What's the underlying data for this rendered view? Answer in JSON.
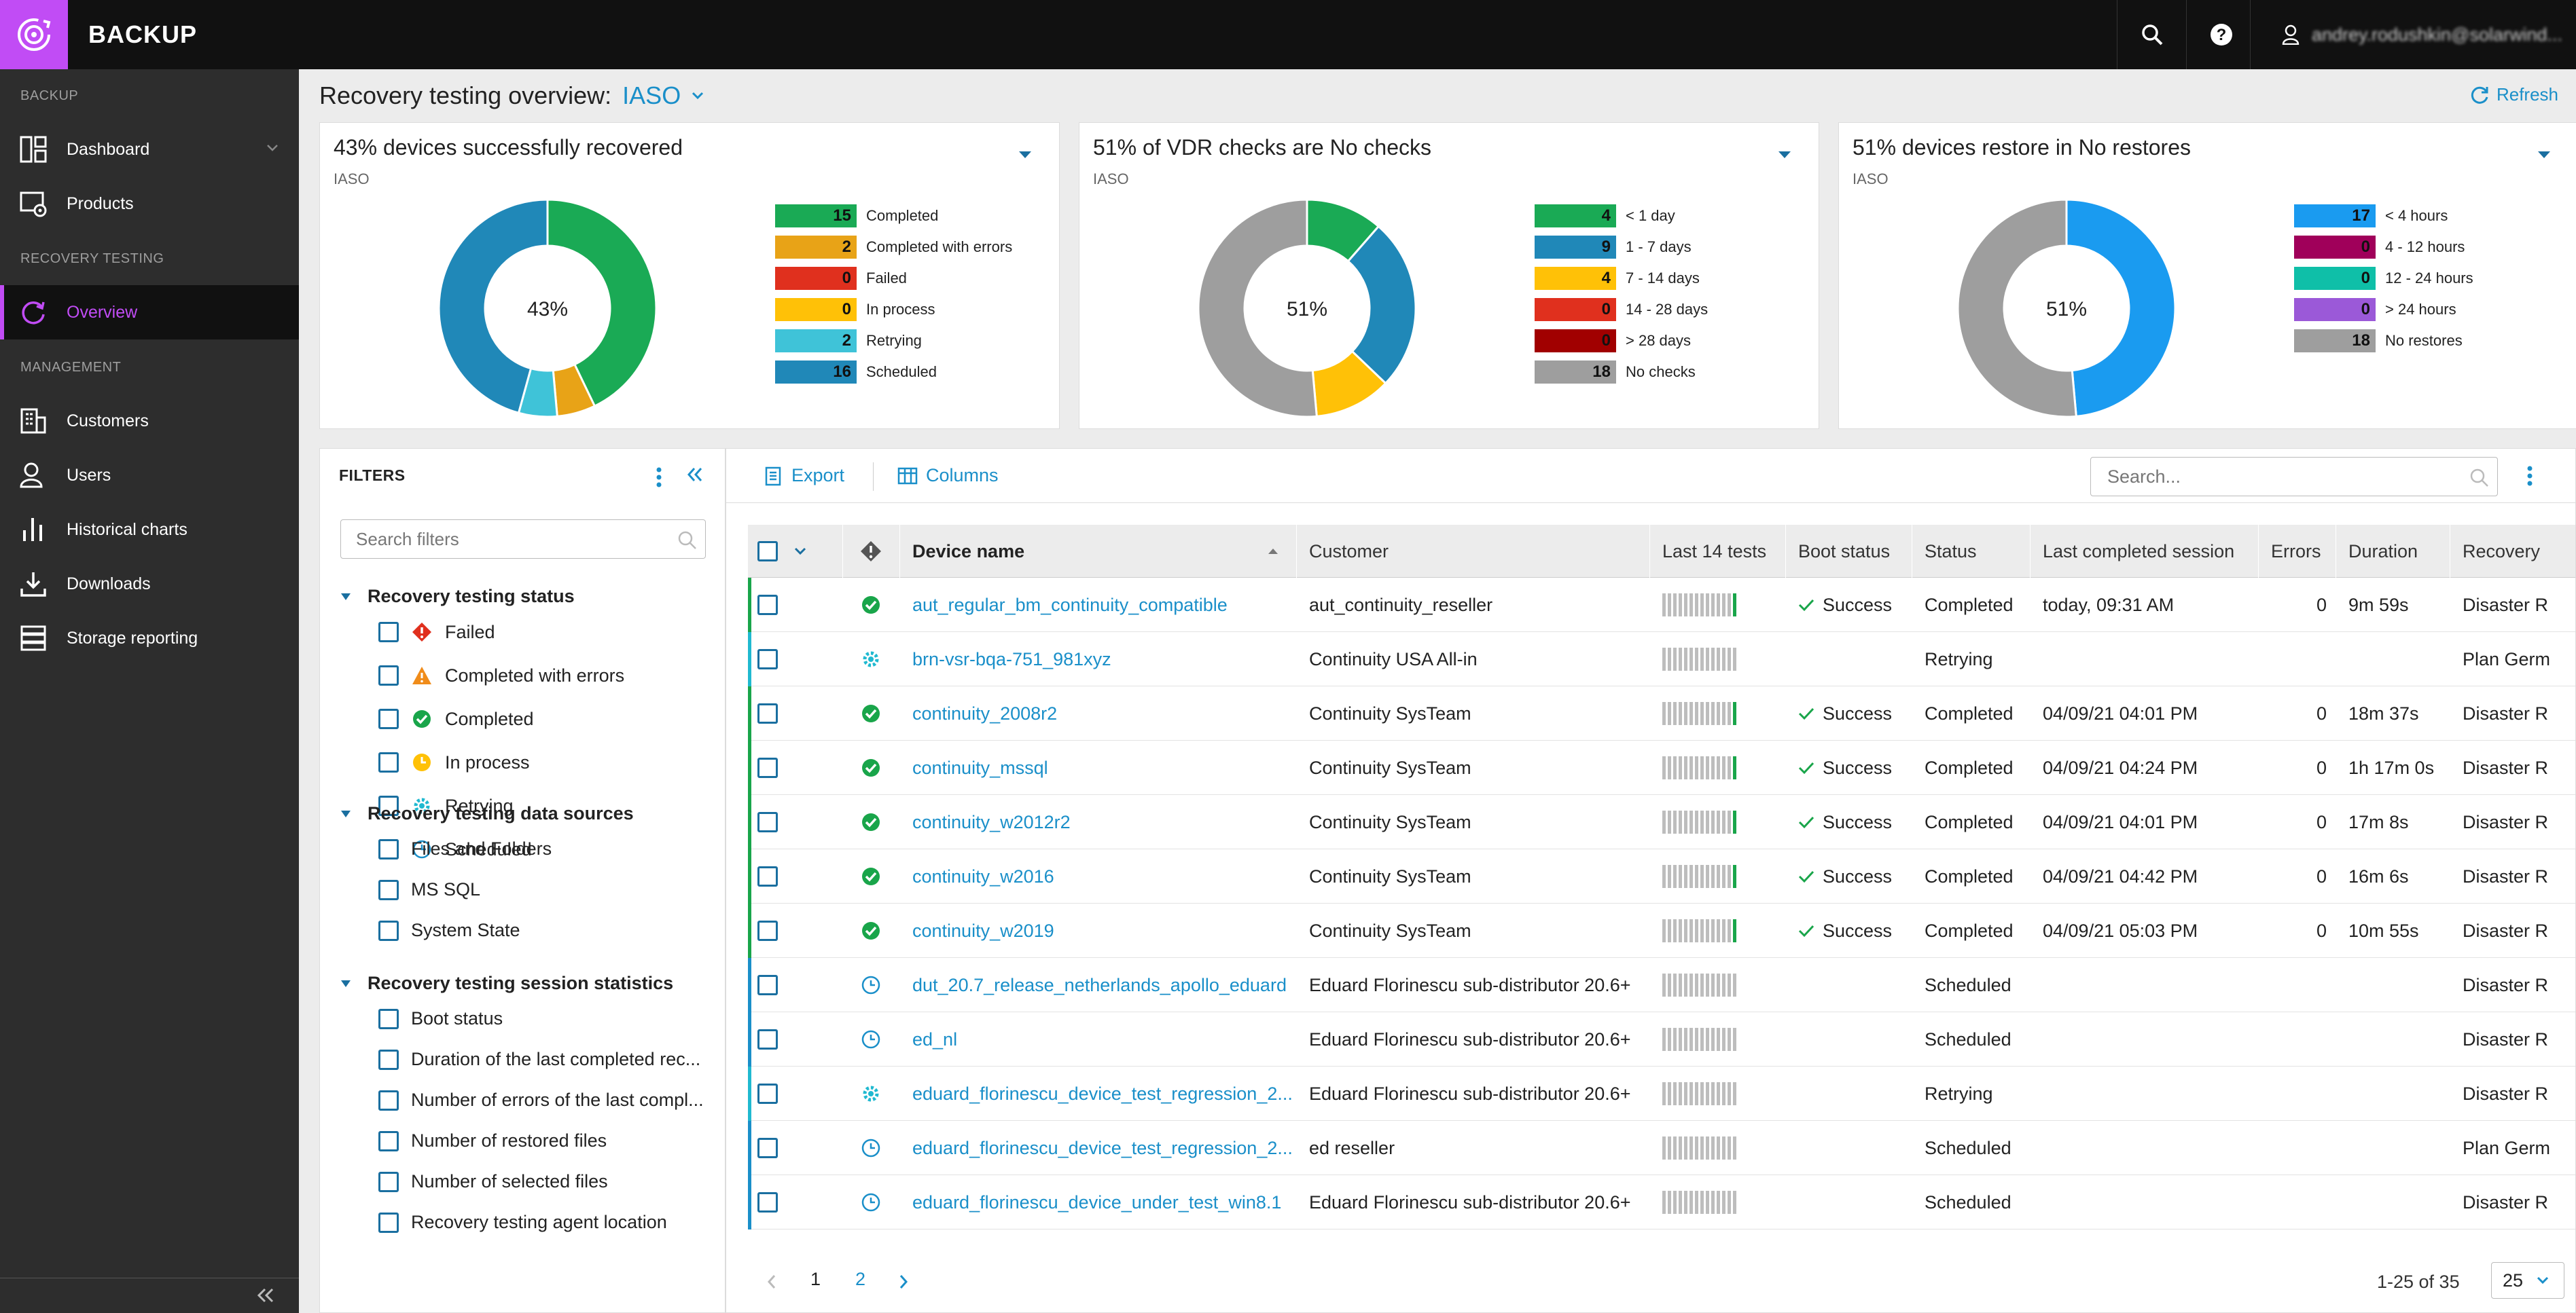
{
  "app": {
    "title": "BACKUP",
    "user": "andrey.rodushkin@solarwind..."
  },
  "sidebar": {
    "section_backup": "BACKUP",
    "section_recovery": "RECOVERY TESTING",
    "section_management": "MANAGEMENT",
    "items": {
      "dashboard": "Dashboard",
      "products": "Products",
      "overview": "Overview",
      "customers": "Customers",
      "users": "Users",
      "historical": "Historical charts",
      "downloads": "Downloads",
      "storage": "Storage reporting"
    }
  },
  "header": {
    "title": "Recovery testing overview:",
    "tenant": "IASO",
    "refresh": "Refresh"
  },
  "cards": [
    {
      "title": "43% devices successfully recovered",
      "sub": "IASO",
      "center": "43%",
      "legend": [
        {
          "value": 15,
          "label": "Completed",
          "color": "#1aaa55"
        },
        {
          "value": 2,
          "label": "Completed with errors",
          "color": "#e8a317"
        },
        {
          "value": 0,
          "label": "Failed",
          "color": "#e0301e"
        },
        {
          "value": 0,
          "label": "In process",
          "color": "#ffc107"
        },
        {
          "value": 2,
          "label": "Retrying",
          "color": "#3fc3d8"
        },
        {
          "value": 16,
          "label": "Scheduled",
          "color": "#2088b8"
        }
      ]
    },
    {
      "title": "51% of VDR checks are No checks",
      "sub": "IASO",
      "center": "51%",
      "legend": [
        {
          "value": 4,
          "label": "< 1 day",
          "color": "#1aaa55"
        },
        {
          "value": 9,
          "label": "1 - 7 days",
          "color": "#2088b8"
        },
        {
          "value": 4,
          "label": "7 - 14 days",
          "color": "#ffc107"
        },
        {
          "value": 0,
          "label": "14 - 28 days",
          "color": "#e0301e"
        },
        {
          "value": 0,
          "label": "> 28 days",
          "color": "#a10000"
        },
        {
          "value": 18,
          "label": "No checks",
          "color": "#9e9e9e"
        }
      ]
    },
    {
      "title": "51% devices restore in No restores",
      "sub": "IASO",
      "center": "51%",
      "legend": [
        {
          "value": 17,
          "label": "< 4 hours",
          "color": "#1a9bf0"
        },
        {
          "value": 0,
          "label": "4 - 12 hours",
          "color": "#a0005a"
        },
        {
          "value": 0,
          "label": "12 - 24 hours",
          "color": "#0fbfa8"
        },
        {
          "value": 0,
          "label": "> 24 hours",
          "color": "#9b59d8"
        },
        {
          "value": 18,
          "label": "No restores",
          "color": "#9e9e9e"
        }
      ]
    }
  ],
  "filters": {
    "title": "FILTERS",
    "search_placeholder": "Search filters",
    "groups": [
      {
        "title": "Recovery testing status",
        "items": [
          "Failed",
          "Completed with errors",
          "Completed",
          "In process",
          "Retrying",
          "Scheduled"
        ]
      },
      {
        "title": "Recovery testing data sources",
        "items": [
          "Files and Folders",
          "MS SQL",
          "System State"
        ]
      },
      {
        "title": "Recovery testing session statistics",
        "items": [
          "Boot status",
          "Duration of the last completed rec...",
          "Number of errors of the last compl...",
          "Number of restored files",
          "Number of selected files",
          "Recovery testing agent location"
        ]
      }
    ]
  },
  "grid": {
    "export": "Export",
    "columns": "Columns",
    "search_placeholder": "Search...",
    "headers": [
      "Device name",
      "Customer",
      "Last 14 tests",
      "Boot status",
      "Status",
      "Last completed session",
      "Errors",
      "Duration",
      "Recovery"
    ],
    "rows": [
      {
        "device": "aut_regular_bm_continuity_compatible",
        "customer": "aut_continuity_reseller",
        "boot": "Success",
        "status": "Completed",
        "session": "today, 09:31 AM",
        "errors": "0",
        "duration": "9m 59s",
        "recovery": "Disaster R",
        "state": "completed"
      },
      {
        "device": "brn-vsr-bqa-751_981xyz",
        "customer": "Continuity USA All-in",
        "boot": "",
        "status": "Retrying",
        "session": "",
        "errors": "",
        "duration": "",
        "recovery": "Plan Germ",
        "state": "retrying"
      },
      {
        "device": "continuity_2008r2",
        "customer": "Continuity SysTeam",
        "boot": "Success",
        "status": "Completed",
        "session": "04/09/21 04:01 PM",
        "errors": "0",
        "duration": "18m 37s",
        "recovery": "Disaster R",
        "state": "completed"
      },
      {
        "device": "continuity_mssql",
        "customer": "Continuity SysTeam",
        "boot": "Success",
        "status": "Completed",
        "session": "04/09/21 04:24 PM",
        "errors": "0",
        "duration": "1h 17m 0s",
        "recovery": "Disaster R",
        "state": "completed"
      },
      {
        "device": "continuity_w2012r2",
        "customer": "Continuity SysTeam",
        "boot": "Success",
        "status": "Completed",
        "session": "04/09/21 04:01 PM",
        "errors": "0",
        "duration": "17m 8s",
        "recovery": "Disaster R",
        "state": "completed"
      },
      {
        "device": "continuity_w2016",
        "customer": "Continuity SysTeam",
        "boot": "Success",
        "status": "Completed",
        "session": "04/09/21 04:42 PM",
        "errors": "0",
        "duration": "16m 6s",
        "recovery": "Disaster R",
        "state": "completed"
      },
      {
        "device": "continuity_w2019",
        "customer": "Continuity SysTeam",
        "boot": "Success",
        "status": "Completed",
        "session": "04/09/21 05:03 PM",
        "errors": "0",
        "duration": "10m 55s",
        "recovery": "Disaster R",
        "state": "completed"
      },
      {
        "device": "dut_20.7_release_netherlands_apollo_eduard",
        "customer": "Eduard Florinescu sub-distributor 20.6+",
        "boot": "",
        "status": "Scheduled",
        "session": "",
        "errors": "",
        "duration": "",
        "recovery": "Disaster R",
        "state": "scheduled"
      },
      {
        "device": "ed_nl",
        "customer": "Eduard Florinescu sub-distributor 20.6+",
        "boot": "",
        "status": "Scheduled",
        "session": "",
        "errors": "",
        "duration": "",
        "recovery": "Disaster R",
        "state": "scheduled"
      },
      {
        "device": "eduard_florinescu_device_test_regression_2...",
        "customer": "Eduard Florinescu sub-distributor 20.6+",
        "boot": "",
        "status": "Retrying",
        "session": "",
        "errors": "",
        "duration": "",
        "recovery": "Disaster R",
        "state": "retrying"
      },
      {
        "device": "eduard_florinescu_device_test_regression_2...",
        "customer": "ed reseller",
        "boot": "",
        "status": "Scheduled",
        "session": "",
        "errors": "",
        "duration": "",
        "recovery": "Plan Germ",
        "state": "scheduled"
      },
      {
        "device": "eduard_florinescu_device_under_test_win8.1",
        "customer": "Eduard Florinescu sub-distributor 20.6+",
        "boot": "",
        "status": "Scheduled",
        "session": "",
        "errors": "",
        "duration": "",
        "recovery": "Disaster R",
        "state": "scheduled"
      }
    ],
    "pager": {
      "page1": "1",
      "page2": "2",
      "range": "1-25 of 35",
      "size": "25"
    }
  },
  "colors": {
    "accent": "#c14cf5",
    "link": "#1a8fc9",
    "completed": "#19a54a",
    "retrying": "#20b9d0",
    "scheduled": "#1a8fc9"
  }
}
